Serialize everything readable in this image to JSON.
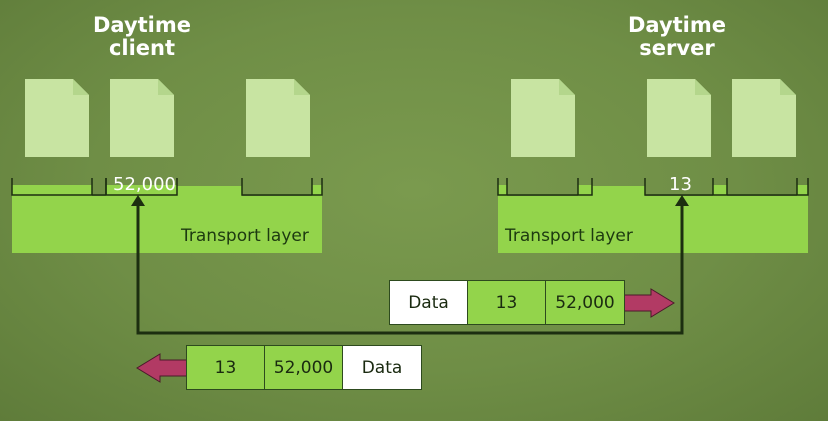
{
  "client": {
    "title": "Daytime\nclient",
    "port_label": "52,000",
    "layer_label": "Transport layer"
  },
  "server": {
    "title": "Daytime\nserver",
    "port_label": "13",
    "layer_label": "Transport layer"
  },
  "packet_to_server": {
    "cells": [
      "Data",
      "13",
      "52,000"
    ]
  },
  "packet_to_client": {
    "cells": [
      "13",
      "52,000",
      "Data"
    ]
  },
  "colors": {
    "background": "#6f8e46",
    "layer_fill": "#93d44b",
    "document_fill": "#c8e4a2",
    "arrow": "#b23a64",
    "line": "#1c2e10"
  },
  "icons": [
    "document-icon",
    "arrow-right-icon",
    "arrow-left-icon"
  ]
}
